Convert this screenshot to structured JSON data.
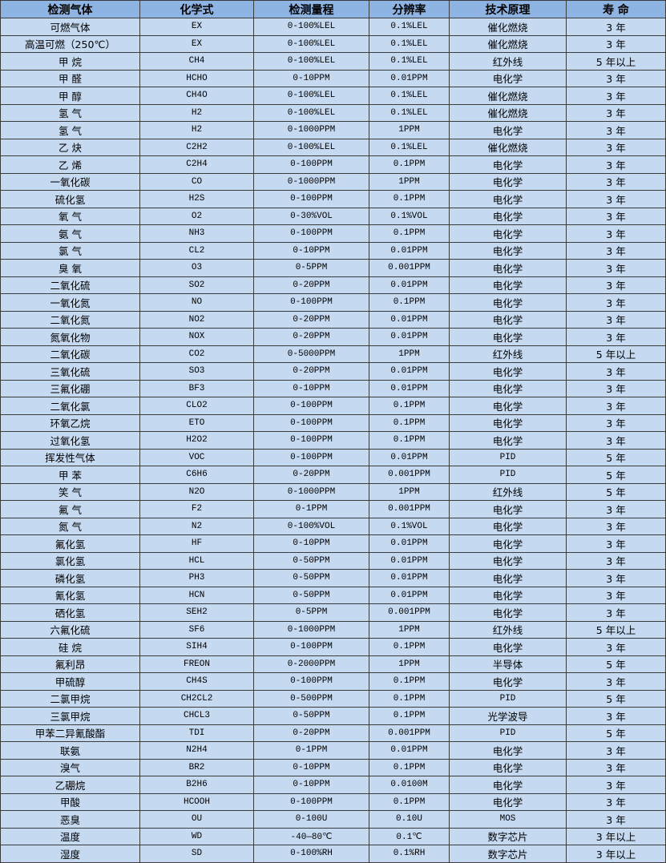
{
  "colors": {
    "header_bg": "#8db4e2",
    "row_bg": "#c5d9f1",
    "border": "#3b3b3b"
  },
  "table": {
    "headers": [
      "检测气体",
      "化学式",
      "检测量程",
      "分辨率",
      "技术原理",
      "寿 命"
    ],
    "rows": [
      [
        "可燃气体",
        "EX",
        "0-100%LEL",
        "0.1%LEL",
        "催化燃烧",
        "3 年"
      ],
      [
        "高温可燃（250℃）",
        "EX",
        "0-100%LEL",
        "0.1%LEL",
        "催化燃烧",
        "3 年"
      ],
      [
        "甲 烷",
        "CH4",
        "0-100%LEL",
        "0.1%LEL",
        "红外线",
        "5 年以上"
      ],
      [
        "甲 醛",
        "HCHO",
        "0-10PPM",
        "0.01PPM",
        "电化学",
        "3 年"
      ],
      [
        "甲 醇",
        "CH4O",
        "0-100%LEL",
        "0.1%LEL",
        "催化燃烧",
        "3 年"
      ],
      [
        "氢 气",
        "H2",
        "0-100%LEL",
        "0.1%LEL",
        "催化燃烧",
        "3 年"
      ],
      [
        "氢 气",
        "H2",
        "0-1000PPM",
        "1PPM",
        "电化学",
        "3 年"
      ],
      [
        "乙 炔",
        "C2H2",
        "0-100%LEL",
        "0.1%LEL",
        "催化燃烧",
        "3 年"
      ],
      [
        "乙 烯",
        "C2H4",
        "0-100PPM",
        "0.1PPM",
        "电化学",
        "3 年"
      ],
      [
        "一氧化碳",
        "CO",
        "0-1000PPM",
        "1PPM",
        "电化学",
        "3 年"
      ],
      [
        "硫化氢",
        "H2S",
        "0-100PPM",
        "0.1PPM",
        "电化学",
        "3 年"
      ],
      [
        "氧 气",
        "O2",
        "0-30%VOL",
        "0.1%VOL",
        "电化学",
        "3 年"
      ],
      [
        "氨 气",
        "NH3",
        "0-100PPM",
        "0.1PPM",
        "电化学",
        "3 年"
      ],
      [
        "氯 气",
        "CL2",
        "0-10PPM",
        "0.01PPM",
        "电化学",
        "3 年"
      ],
      [
        "臭 氧",
        "O3",
        "0-5PPM",
        "0.001PPM",
        "电化学",
        "3 年"
      ],
      [
        "二氧化硫",
        "SO2",
        "0-20PPM",
        "0.01PPM",
        "电化学",
        "3 年"
      ],
      [
        "一氧化氮",
        "NO",
        "0-100PPM",
        "0.1PPM",
        "电化学",
        "3 年"
      ],
      [
        "二氧化氮",
        "NO2",
        "0-20PPM",
        "0.01PPM",
        "电化学",
        "3 年"
      ],
      [
        "氮氧化物",
        "NOX",
        "0-20PPM",
        "0.01PPM",
        "电化学",
        "3 年"
      ],
      [
        "二氧化碳",
        "CO2",
        "0-5000PPM",
        "1PPM",
        "红外线",
        "5 年以上"
      ],
      [
        "三氧化硫",
        "SO3",
        "0-20PPM",
        "0.01PPM",
        "电化学",
        "3 年"
      ],
      [
        "三氟化硼",
        "BF3",
        "0-10PPM",
        "0.01PPM",
        "电化学",
        "3 年"
      ],
      [
        "二氧化氯",
        "CLO2",
        "0-100PPM",
        "0.1PPM",
        "电化学",
        "3 年"
      ],
      [
        "环氧乙烷",
        "ETO",
        "0-100PPM",
        "0.1PPM",
        "电化学",
        "3 年"
      ],
      [
        "过氧化氢",
        "H2O2",
        "0-100PPM",
        "0.1PPM",
        "电化学",
        "3 年"
      ],
      [
        "挥发性气体",
        "VOC",
        "0-100PPM",
        "0.01PPM",
        "PID",
        "5 年"
      ],
      [
        "甲 苯",
        "C6H6",
        "0-20PPM",
        "0.001PPM",
        "PID",
        "5 年"
      ],
      [
        "笑 气",
        "N2O",
        "0-1000PPM",
        "1PPM",
        "红外线",
        "5 年"
      ],
      [
        "氟 气",
        "F2",
        "0-1PPM",
        "0.001PPM",
        "电化学",
        "3 年"
      ],
      [
        "氮 气",
        "N2",
        "0-100%VOL",
        "0.1%VOL",
        "电化学",
        "3 年"
      ],
      [
        "氟化氢",
        "HF",
        "0-10PPM",
        "0.01PPM",
        "电化学",
        "3 年"
      ],
      [
        "氯化氢",
        "HCL",
        "0-50PPM",
        "0.01PPM",
        "电化学",
        "3 年"
      ],
      [
        "磷化氢",
        "PH3",
        "0-50PPM",
        "0.01PPM",
        "电化学",
        "3 年"
      ],
      [
        "氰化氢",
        "HCN",
        "0-50PPM",
        "0.01PPM",
        "电化学",
        "3 年"
      ],
      [
        "硒化氢",
        "SEH2",
        "0-5PPM",
        "0.001PPM",
        "电化学",
        "3 年"
      ],
      [
        "六氟化硫",
        "SF6",
        "0-1000PPM",
        "1PPM",
        "红外线",
        "5 年以上"
      ],
      [
        "硅 烷",
        "SIH4",
        "0-100PPM",
        "0.1PPM",
        "电化学",
        "3 年"
      ],
      [
        "氟利昂",
        "FREON",
        "0-2000PPM",
        "1PPM",
        "半导体",
        "5 年"
      ],
      [
        "甲硫醇",
        "CH4S",
        "0-100PPM",
        "0.1PPM",
        "电化学",
        "3 年"
      ],
      [
        "二氯甲烷",
        "CH2CL2",
        "0-500PPM",
        "0.1PPM",
        "PID",
        "5 年"
      ],
      [
        "三氯甲烷",
        "CHCL3",
        "0-50PPM",
        "0.1PPM",
        "光学波导",
        "3 年"
      ],
      [
        "甲苯二异氰酸酯",
        "TDI",
        "0-20PPM",
        "0.001PPM",
        "PID",
        "5 年"
      ],
      [
        "联氨",
        "N2H4",
        "0-1PPM",
        "0.01PPM",
        "电化学",
        "3 年"
      ],
      [
        "溴气",
        "BR2",
        "0-10PPM",
        "0.1PPM",
        "电化学",
        "3 年"
      ],
      [
        "乙硼烷",
        "B2H6",
        "0-10PPM",
        "0.0100M",
        "电化学",
        "3 年"
      ],
      [
        "甲酸",
        "HCOOH",
        "0-100PPM",
        "0.1PPM",
        "电化学",
        "3 年"
      ],
      [
        "恶臭",
        "OU",
        "0-100U",
        "0.10U",
        "MOS",
        "3 年"
      ],
      [
        "温度",
        "WD",
        "-40—80℃",
        "0.1℃",
        "数字芯片",
        "3 年以上"
      ],
      [
        "湿度",
        "SD",
        "0-100%RH",
        "0.1%RH",
        "数字芯片",
        "3 年以上"
      ]
    ]
  }
}
